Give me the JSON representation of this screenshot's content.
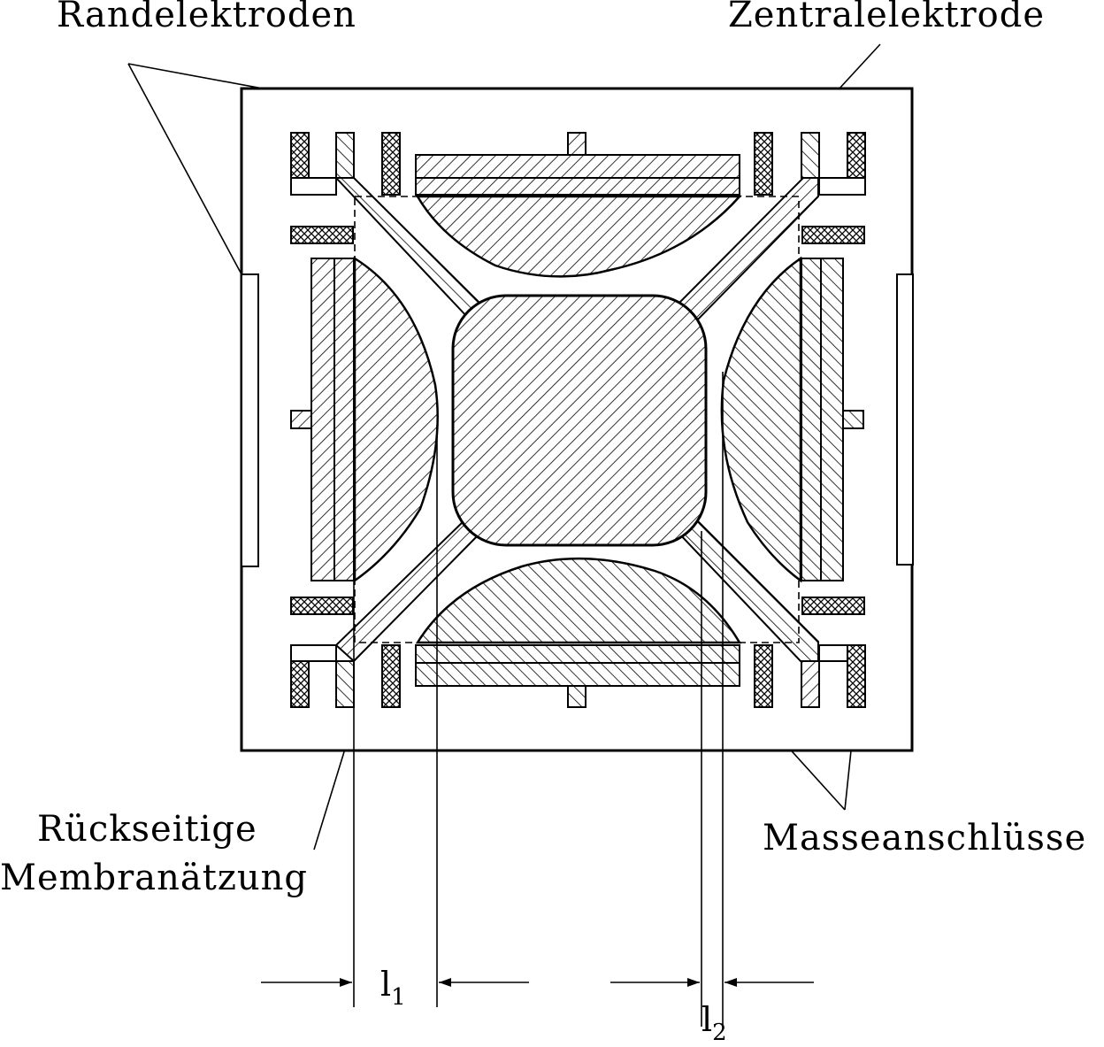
{
  "labels": {
    "top_left": "Randelektroden",
    "top_right": "Zentralelektrode",
    "bottom_left_line1": "Rückseitige",
    "bottom_left_line2": "Membranätzung",
    "bottom_right": "Masseanschlüsse"
  },
  "dimensions": {
    "l1_base": "l",
    "l1_sub": "1",
    "l2_base": "l",
    "l2_sub": "2"
  },
  "colors": {
    "line": "#000000",
    "background": "#ffffff"
  },
  "hatch_patterns": [
    "diagonal-hatch",
    "reverse-hatch",
    "cross-hatch"
  ]
}
